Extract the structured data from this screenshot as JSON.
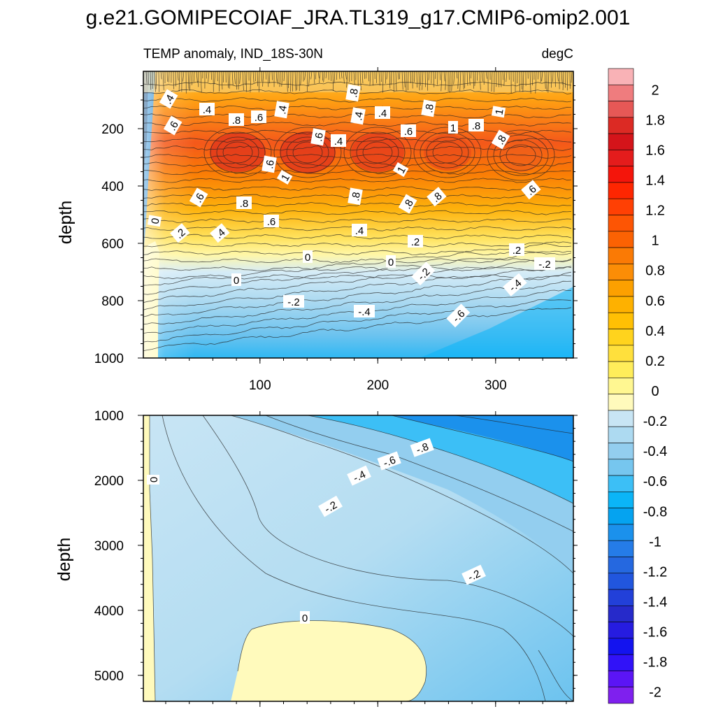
{
  "chart_data": {
    "type": "heatmap",
    "title": "g.e21.GOMIPECOIAF_JRA.TL319_g17.CMIP6-omip2.001",
    "subtitle": "TEMP anomaly, IND_18S-30N",
    "units": "degC",
    "x_ticks": [
      "100",
      "200",
      "300"
    ],
    "x_range": [
      1,
      366
    ],
    "colorbar": {
      "levels": [
        "2",
        "1.8",
        "1.6",
        "1.4",
        "1.2",
        "1",
        "0.8",
        "0.6",
        "0.4",
        "0.2",
        "0",
        "-0.2",
        "-0.4",
        "-0.6",
        "-0.8",
        "-1",
        "-1.2",
        "-1.4",
        "-1.6",
        "-1.8",
        "-2"
      ],
      "colors": [
        "#F9B2B6",
        "#EF7C7E",
        "#E65856",
        "#DC2A24",
        "#D4141A",
        "#E41C1C",
        "#F4150B",
        "#FE2601",
        "#FF4004",
        "#FD5504",
        "#FB6203",
        "#FA7A05",
        "#FB8D06",
        "#FCA000",
        "#FEB100",
        "#FFC004",
        "#FFD31D",
        "#FFE03C",
        "#FFED5A",
        "#FFF791",
        "#FFFABC",
        "#C8E5F4",
        "#ADDAF1",
        "#93CEEF",
        "#76C6EF",
        "#3CBFF6",
        "#0BB5F7",
        "#05A3F0",
        "#1B91EC",
        "#257CE8",
        "#2568E0",
        "#2156DE",
        "#2240D9",
        "#262ACA",
        "#261CE0",
        "#1313EF",
        "#3112F8",
        "#5B15F5",
        "#7F20EE"
      ]
    },
    "panels": [
      {
        "name": "upper",
        "ylabel": "depth",
        "y_range": [
          0,
          1000
        ],
        "y_ticks": [
          "200",
          "400",
          "600",
          "800",
          "1000"
        ],
        "contour_labels": [
          ".4",
          ".4",
          ".6",
          ".8",
          ".6",
          ".4",
          ".6",
          ".8",
          ".4",
          ".4",
          ".6",
          ".8",
          ".4",
          ".6",
          "1",
          ".8",
          "1",
          ".8",
          "1",
          "1",
          ".6",
          ".8",
          ".8",
          ".8",
          ".6",
          ".8",
          "0",
          ".2",
          ".4",
          ".6",
          ".4",
          ".2",
          "0",
          ".2",
          "0",
          "-.2",
          "0",
          "-.2",
          "-.2",
          "-.4",
          "-.4",
          "-.6"
        ]
      },
      {
        "name": "lower",
        "ylabel": "depth",
        "y_range": [
          1000,
          5400
        ],
        "y_ticks": [
          "1000",
          "2000",
          "3000",
          "4000",
          "5000"
        ],
        "contour_labels": [
          "0",
          "-.4",
          "-.6",
          "-.8",
          "-.2",
          "-.2",
          "0"
        ]
      }
    ]
  }
}
